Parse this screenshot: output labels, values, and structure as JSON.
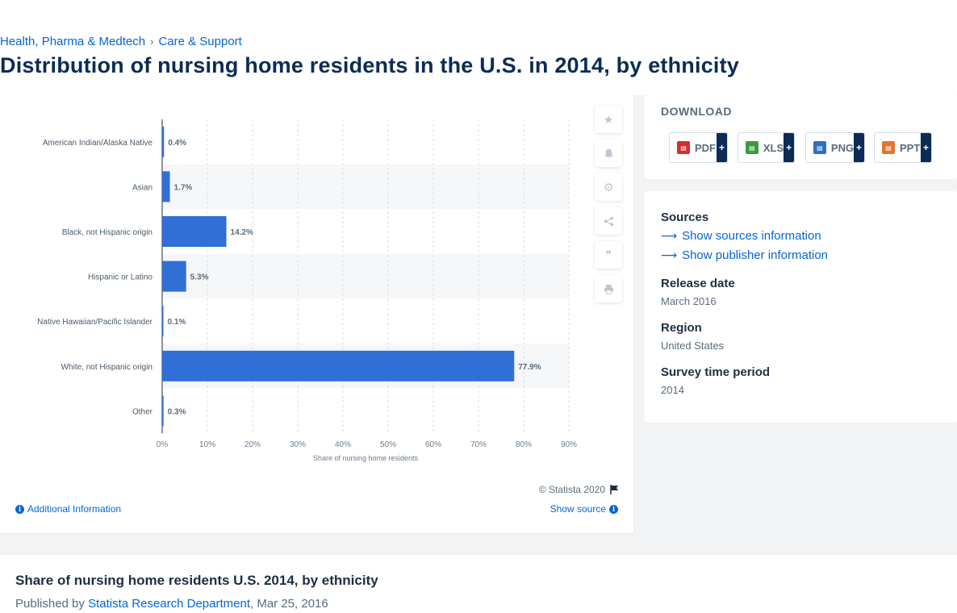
{
  "breadcrumb": {
    "items": [
      "Health, Pharma & Medtech",
      "Care & Support"
    ],
    "separator": "›"
  },
  "page_title": "Distribution of nursing home residents in the U.S. in 2014, by ethnicity",
  "chart_data": {
    "type": "bar",
    "orientation": "horizontal",
    "categories": [
      "American Indian/Alaska Native",
      "Asian",
      "Black, not Hispanic origin",
      "Hispanic or Latino",
      "Native Hawaiian/Pacific Islander",
      "White, not Hispanic origin",
      "Other"
    ],
    "values": [
      0.4,
      1.7,
      14.2,
      5.3,
      0.1,
      77.9,
      0.3
    ],
    "value_labels": [
      "0.4%",
      "1.7%",
      "14.2%",
      "5.3%",
      "0.1%",
      "77.9%",
      "0.3%"
    ],
    "xlabel": "Share of nursing home residents",
    "xticks": [
      "0%",
      "10%",
      "20%",
      "30%",
      "40%",
      "50%",
      "60%",
      "70%",
      "80%",
      "90%"
    ],
    "xlim": [
      0,
      90
    ],
    "grid": true,
    "bar_color": "#2f6fd6"
  },
  "chart_footer": {
    "copyright": "© Statista 2020",
    "additional_info": "Additional Information",
    "show_source": "Show source"
  },
  "tools": [
    "star-icon",
    "bell-icon",
    "gear-icon",
    "share-icon",
    "quote-icon",
    "print-icon"
  ],
  "download": {
    "title": "DOWNLOAD",
    "buttons": [
      {
        "label": "PDF",
        "color": "#d0312d"
      },
      {
        "label": "XLS",
        "color": "#3a9a3f"
      },
      {
        "label": "PNG",
        "color": "#2d6fc4"
      },
      {
        "label": "PPT",
        "color": "#e0772a"
      }
    ],
    "plus": "+"
  },
  "meta": {
    "sources_label": "Sources",
    "show_sources": "Show sources information",
    "show_publisher": "Show publisher information",
    "release_label": "Release date",
    "release_value": "March 2016",
    "region_label": "Region",
    "region_value": "United States",
    "period_label": "Survey time period",
    "period_value": "2014"
  },
  "publication": {
    "title": "Share of nursing home residents U.S. 2014, by ethnicity",
    "published_by_prefix": "Published by",
    "publisher": "Statista Research Department",
    "date": ", Mar 25, 2016"
  }
}
